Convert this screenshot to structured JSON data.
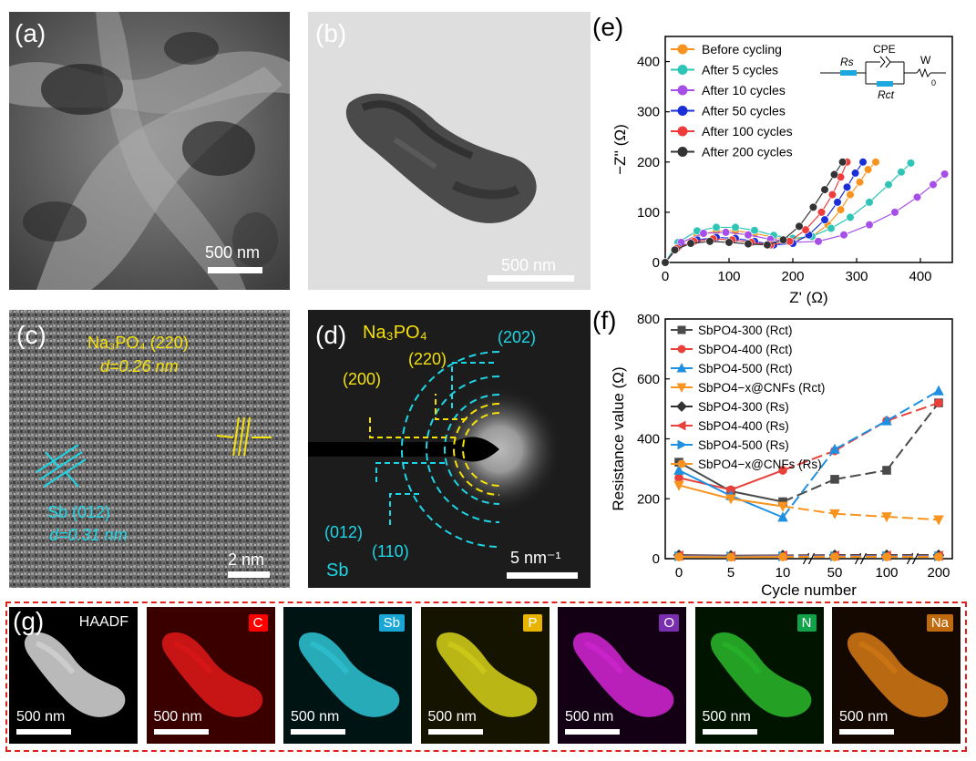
{
  "panels": {
    "a": {
      "label": "(a)",
      "scale": "500 nm"
    },
    "b": {
      "label": "(b)",
      "scale": "500 nm"
    },
    "c": {
      "label": "(c)",
      "scale": "2 nm",
      "na_phase": "Na₃PO₄ (220)",
      "na_d": "d=0.26 nm",
      "sb_phase": "Sb (012)",
      "sb_d": "d=0.31 nm"
    },
    "d": {
      "label": "(d)",
      "scale": "5 nm⁻¹",
      "na_title": "Na₃PO₄",
      "sb_title": "Sb",
      "rings": {
        "r200": "(200)",
        "r220": "(220)",
        "r202": "(202)",
        "r012": "(012)",
        "r110": "(110)"
      }
    },
    "e": {
      "label": "(e)"
    },
    "f": {
      "label": "(f)"
    },
    "g": {
      "label": "(g)"
    }
  },
  "circuit": {
    "rs": "Rs",
    "cpe": "CPE",
    "rct": "Rct",
    "w": "W",
    "w_sub": "0"
  },
  "colors": {
    "yellow": "#f5e10a",
    "cyan": "#1ed6e6",
    "red_dash": "#e0201a"
  },
  "chart_data": [
    {
      "type": "scatter",
      "panel": "e",
      "xlabel": "Z' (Ω)",
      "ylabel": "−Z'' (Ω)",
      "xlim": [
        0,
        450
      ],
      "ylim": [
        0,
        450
      ],
      "xticks": [
        0,
        100,
        200,
        300,
        400
      ],
      "yticks": [
        0,
        100,
        200,
        300,
        400
      ],
      "legend_position": "top-left",
      "series": [
        {
          "name": "Before cycling",
          "color": "#f7931e",
          "x": [
            0,
            20,
            50,
            80,
            110,
            140,
            170,
            200,
            230,
            255,
            275,
            290,
            305,
            318,
            330
          ],
          "y": [
            0,
            35,
            55,
            62,
            63,
            58,
            50,
            45,
            52,
            75,
            105,
            135,
            160,
            185,
            200
          ]
        },
        {
          "name": "After 5 cycles",
          "color": "#2ec4b6",
          "x": [
            0,
            20,
            50,
            80,
            110,
            140,
            170,
            200,
            230,
            260,
            290,
            320,
            350,
            370,
            385
          ],
          "y": [
            0,
            40,
            63,
            70,
            70,
            64,
            54,
            48,
            52,
            68,
            90,
            120,
            155,
            180,
            198
          ]
        },
        {
          "name": "After 10 cycles",
          "color": "#a64ee8",
          "x": [
            0,
            25,
            60,
            95,
            130,
            165,
            200,
            240,
            280,
            320,
            360,
            395,
            420,
            438
          ],
          "y": [
            0,
            40,
            58,
            60,
            55,
            46,
            40,
            42,
            55,
            75,
            100,
            130,
            155,
            176
          ]
        },
        {
          "name": "After 50 cycles",
          "color": "#1a2fd8",
          "x": [
            0,
            20,
            50,
            80,
            110,
            140,
            170,
            200,
            225,
            250,
            270,
            285,
            298,
            310
          ],
          "y": [
            0,
            30,
            45,
            50,
            48,
            42,
            35,
            38,
            55,
            85,
            120,
            150,
            178,
            200
          ]
        },
        {
          "name": "After 100 cycles",
          "color": "#ee3b3b",
          "x": [
            0,
            18,
            45,
            75,
            105,
            135,
            165,
            195,
            220,
            245,
            262,
            275,
            285
          ],
          "y": [
            0,
            28,
            42,
            47,
            45,
            40,
            35,
            42,
            65,
            100,
            135,
            170,
            200
          ]
        },
        {
          "name": "After 200 cycles",
          "color": "#333333",
          "x": [
            0,
            15,
            40,
            70,
            100,
            130,
            160,
            185,
            210,
            232,
            250,
            265,
            278
          ],
          "y": [
            0,
            25,
            38,
            42,
            40,
            37,
            35,
            45,
            72,
            110,
            145,
            175,
            200
          ]
        }
      ]
    },
    {
      "type": "line",
      "panel": "f",
      "xlabel": "Cycle number",
      "ylabel": "Resistance value (Ω)",
      "categories": [
        "0",
        "5",
        "10",
        "50",
        "100",
        "200"
      ],
      "ylim": [
        0,
        800
      ],
      "yticks": [
        0,
        200,
        400,
        600,
        800
      ],
      "legend_position": "top-left",
      "series": [
        {
          "name": "SbPO4-300 (Rct)",
          "color": "#4a4a4a",
          "marker": "square",
          "values": [
            322,
            225,
            190,
            265,
            295,
            520
          ]
        },
        {
          "name": "SbPO4-400 (Rct)",
          "color": "#e8413a",
          "marker": "circle",
          "values": [
            270,
            230,
            295,
            360,
            460,
            520
          ]
        },
        {
          "name": "SbPO4-500 (Rct)",
          "color": "#1f8fe0",
          "marker": "triangle-up",
          "values": [
            295,
            210,
            138,
            365,
            460,
            560
          ]
        },
        {
          "name": "SbPO4−x@CNFs (Rct)",
          "color": "#f7931e",
          "marker": "triangle-down",
          "values": [
            245,
            200,
            175,
            150,
            140,
            130
          ]
        },
        {
          "name": "SbPO4-300 (Rs)",
          "color": "#333333",
          "marker": "diamond",
          "values": [
            12,
            10,
            11,
            12,
            12,
            12
          ]
        },
        {
          "name": "SbPO4-400 (Rs)",
          "color": "#e8413a",
          "marker": "triangle-left",
          "values": [
            10,
            8,
            10,
            10,
            10,
            10
          ]
        },
        {
          "name": "SbPO4-500 (Rs)",
          "color": "#1f8fe0",
          "marker": "triangle-right",
          "values": [
            8,
            7,
            8,
            8,
            8,
            8
          ]
        },
        {
          "name": "SbPO4−x@CNFs (Rs)",
          "color": "#f7931e",
          "marker": "circle",
          "values": [
            6,
            5,
            6,
            6,
            6,
            6
          ]
        }
      ]
    }
  ],
  "maps": [
    {
      "title": "HAADF",
      "tag": "",
      "scale": "500 nm",
      "bg": "#000000",
      "fg": "#d9d9d9",
      "tagcolor": ""
    },
    {
      "title": "",
      "tag": "C",
      "scale": "500 nm",
      "bg": "#3a0000",
      "fg": "#e01818",
      "tagcolor": "#ff0000"
    },
    {
      "title": "",
      "tag": "Sb",
      "scale": "500 nm",
      "bg": "#001414",
      "fg": "#2fc6d6",
      "tagcolor": "#1aa7d6"
    },
    {
      "title": "",
      "tag": "P",
      "scale": "500 nm",
      "bg": "#141400",
      "fg": "#d6d21a",
      "tagcolor": "#e8b400"
    },
    {
      "title": "",
      "tag": "O",
      "scale": "500 nm",
      "bg": "#140014",
      "fg": "#d626d6",
      "tagcolor": "#7a2fb0"
    },
    {
      "title": "",
      "tag": "N",
      "scale": "500 nm",
      "bg": "#001400",
      "fg": "#2ab82a",
      "tagcolor": "#12a24a"
    },
    {
      "title": "",
      "tag": "Na",
      "scale": "500 nm",
      "bg": "#140800",
      "fg": "#d67a14",
      "tagcolor": "#c06a10"
    }
  ]
}
